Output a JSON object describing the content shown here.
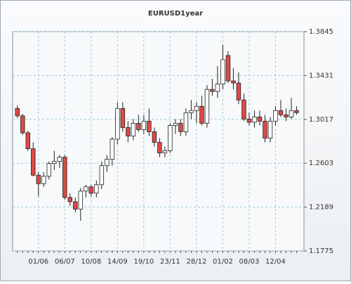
{
  "chart_data": {
    "type": "candlestick",
    "title": "EURUSD1year",
    "categories": [
      null,
      null,
      null,
      null,
      "01/06",
      null,
      null,
      null,
      null,
      "06/07",
      null,
      null,
      null,
      null,
      "10/08",
      null,
      null,
      null,
      null,
      "14/09",
      null,
      null,
      null,
      null,
      "19/10",
      null,
      null,
      null,
      null,
      "23/11",
      null,
      null,
      null,
      null,
      "28/12",
      null,
      null,
      null,
      null,
      "01/02",
      null,
      null,
      null,
      null,
      "08/03",
      null,
      null,
      null,
      null,
      "12/04",
      null,
      null,
      null,
      null
    ],
    "open": [
      1.312,
      1.305,
      1.289,
      1.274,
      1.249,
      1.241,
      1.248,
      1.26,
      1.262,
      1.266,
      1.228,
      1.224,
      1.217,
      1.234,
      1.238,
      1.232,
      1.24,
      1.258,
      1.264,
      1.283,
      1.312,
      1.294,
      1.286,
      1.298,
      1.292,
      1.3,
      1.29,
      1.28,
      1.27,
      1.272,
      1.296,
      1.298,
      1.29,
      1.308,
      1.31,
      1.314,
      1.298,
      1.33,
      1.328,
      1.335,
      1.362,
      1.338,
      1.336,
      1.32,
      1.302,
      1.299,
      1.304,
      1.3,
      1.284,
      1.3,
      1.31,
      1.306,
      1.304,
      1.31
    ],
    "high": [
      1.315,
      1.307,
      1.291,
      1.28,
      1.252,
      1.252,
      1.262,
      1.272,
      1.268,
      1.268,
      1.232,
      1.228,
      1.237,
      1.24,
      1.24,
      1.244,
      1.262,
      1.268,
      1.285,
      1.318,
      1.318,
      1.3,
      1.302,
      1.306,
      1.306,
      1.312,
      1.294,
      1.284,
      1.276,
      1.298,
      1.302,
      1.302,
      1.312,
      1.32,
      1.318,
      1.324,
      1.334,
      1.34,
      1.352,
      1.372,
      1.366,
      1.35,
      1.346,
      1.326,
      1.308,
      1.31,
      1.31,
      1.306,
      1.304,
      1.314,
      1.32,
      1.312,
      1.322,
      1.314
    ],
    "low": [
      1.303,
      1.287,
      1.272,
      1.248,
      1.229,
      1.238,
      1.245,
      1.254,
      1.256,
      1.226,
      1.22,
      1.214,
      1.206,
      1.228,
      1.229,
      1.228,
      1.236,
      1.252,
      1.258,
      1.278,
      1.29,
      1.28,
      1.282,
      1.29,
      1.288,
      1.286,
      1.276,
      1.266,
      1.266,
      1.27,
      1.288,
      1.286,
      1.286,
      1.302,
      1.298,
      1.296,
      1.294,
      1.324,
      1.322,
      1.33,
      1.336,
      1.33,
      1.316,
      1.3,
      1.296,
      1.294,
      1.296,
      1.28,
      1.28,
      1.296,
      1.304,
      1.3,
      1.302,
      1.306
    ],
    "close": [
      1.305,
      1.289,
      1.274,
      1.249,
      1.241,
      1.248,
      1.26,
      1.262,
      1.266,
      1.228,
      1.224,
      1.217,
      1.234,
      1.238,
      1.232,
      1.24,
      1.258,
      1.264,
      1.283,
      1.312,
      1.294,
      1.286,
      1.298,
      1.292,
      1.3,
      1.29,
      1.28,
      1.27,
      1.272,
      1.296,
      1.298,
      1.29,
      1.308,
      1.31,
      1.314,
      1.298,
      1.33,
      1.328,
      1.335,
      1.358,
      1.338,
      1.336,
      1.32,
      1.302,
      1.299,
      1.304,
      1.3,
      1.284,
      1.3,
      1.31,
      1.306,
      1.304,
      1.31,
      1.308
    ],
    "up_color": "#ffffff",
    "down_color": "#e04848",
    "edge_color": "#222222",
    "ylim": [
      1.1775,
      1.3845
    ],
    "yticks": [
      1.1775,
      1.2189,
      1.2603,
      1.3017,
      1.3431,
      1.3845
    ],
    "grid": true
  }
}
